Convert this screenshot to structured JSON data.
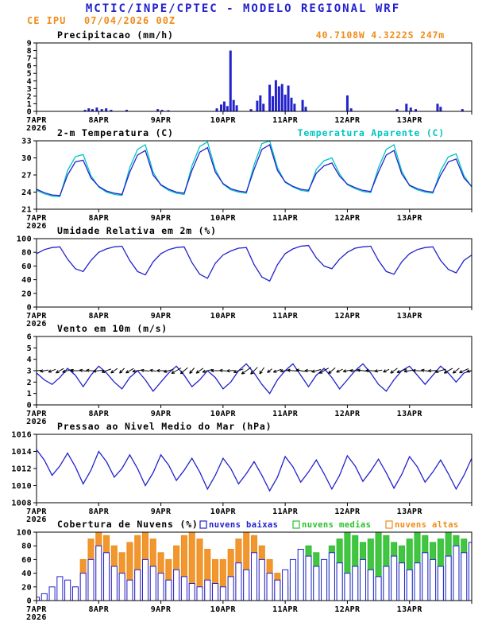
{
  "header": {
    "title": "MCTIC/INPE/CPTEC - MODELO REGIONAL WRF",
    "station": "CE IPU",
    "datetime": "07/04/2026 00Z"
  },
  "colors": {
    "blue": "#2222cc",
    "cyan": "#00c3c3",
    "orange": "#ef8c1a",
    "green": "#2ebf2e",
    "black": "#000000"
  },
  "x_axis": {
    "tick_labels": [
      "7APR",
      "8APR",
      "9APR",
      "10APR",
      "11APR",
      "12APR",
      "13APR"
    ],
    "year_label": "2026",
    "domain_days": 7,
    "points_step_days": 0.125
  },
  "chart_data": [
    {
      "id": "precipitacao",
      "type": "bar",
      "title": "Precipitacao (mm/h)",
      "right_label": {
        "text": "40.7108W 4.3222S 247m",
        "color": "orange"
      },
      "ylim": [
        0,
        9
      ],
      "yticks": [
        0,
        1,
        2,
        3,
        4,
        5,
        6,
        7,
        8,
        9
      ],
      "bar_color": "blue",
      "bars": [
        [
          0.78,
          0.2
        ],
        [
          0.84,
          0.4
        ],
        [
          0.9,
          0.3
        ],
        [
          0.97,
          0.5
        ],
        [
          1.05,
          0.3
        ],
        [
          1.12,
          0.4
        ],
        [
          1.2,
          0.2
        ],
        [
          1.45,
          0.2
        ],
        [
          1.95,
          0.3
        ],
        [
          2.02,
          0.2
        ],
        [
          2.12,
          0.15
        ],
        [
          2.9,
          0.4
        ],
        [
          2.97,
          0.9
        ],
        [
          3.02,
          1.3
        ],
        [
          3.07,
          0.7
        ],
        [
          3.12,
          8.0
        ],
        [
          3.17,
          1.5
        ],
        [
          3.22,
          0.8
        ],
        [
          3.45,
          0.3
        ],
        [
          3.55,
          1.4
        ],
        [
          3.6,
          2.1
        ],
        [
          3.65,
          1.0
        ],
        [
          3.75,
          3.5
        ],
        [
          3.8,
          2.0
        ],
        [
          3.85,
          4.1
        ],
        [
          3.9,
          3.3
        ],
        [
          3.95,
          3.6
        ],
        [
          4.0,
          2.2
        ],
        [
          4.05,
          3.4
        ],
        [
          4.1,
          1.8
        ],
        [
          4.15,
          1.0
        ],
        [
          4.28,
          1.5
        ],
        [
          4.33,
          0.6
        ],
        [
          5.0,
          2.1
        ],
        [
          5.06,
          0.4
        ],
        [
          5.8,
          0.3
        ],
        [
          5.95,
          1.0
        ],
        [
          6.02,
          0.5
        ],
        [
          6.1,
          0.3
        ],
        [
          6.45,
          1.0
        ],
        [
          6.5,
          0.6
        ],
        [
          6.85,
          0.3
        ]
      ]
    },
    {
      "id": "temperatura",
      "type": "line",
      "title": "2-m Temperatura (C)",
      "right_label": {
        "text": "Temperatura Aparente (C)",
        "color": "cyan"
      },
      "ylim": [
        21,
        33
      ],
      "yticks": [
        21,
        24,
        27,
        30,
        33
      ],
      "series": [
        {
          "name": "temperatura-aparente",
          "color": "cyan",
          "values": [
            24.3,
            23.7,
            23.3,
            23.2,
            27.8,
            30.2,
            30.6,
            26.9,
            24.9,
            24.0,
            23.6,
            23.4,
            28.3,
            31.5,
            32.3,
            27.5,
            25.2,
            24.3,
            23.8,
            23.6,
            28.6,
            32.0,
            32.8,
            28.0,
            25.4,
            24.4,
            24.0,
            23.8,
            28.8,
            32.5,
            33.0,
            28.3,
            25.7,
            24.9,
            24.3,
            24.1,
            28.0,
            29.5,
            30.0,
            27.2,
            25.3,
            24.6,
            24.1,
            23.9,
            28.3,
            31.5,
            32.3,
            27.7,
            25.1,
            24.4,
            24.0,
            23.8,
            27.8,
            30.2,
            30.7,
            26.9,
            24.9
          ]
        },
        {
          "name": "temperatura-2m",
          "color": "blue",
          "values": [
            24.5,
            23.9,
            23.5,
            23.4,
            27.0,
            29.3,
            29.6,
            26.5,
            25.0,
            24.2,
            23.8,
            23.6,
            27.5,
            30.5,
            31.3,
            27.0,
            25.3,
            24.5,
            24.0,
            23.8,
            27.8,
            31.0,
            31.8,
            27.5,
            25.5,
            24.6,
            24.2,
            24.0,
            28.0,
            31.5,
            32.3,
            27.8,
            25.8,
            25.0,
            24.5,
            24.3,
            27.3,
            28.6,
            29.1,
            26.8,
            25.4,
            24.8,
            24.3,
            24.1,
            27.5,
            30.5,
            31.3,
            27.2,
            25.2,
            24.6,
            24.2,
            24.0,
            27.0,
            29.3,
            29.8,
            26.5,
            25.0
          ]
        }
      ]
    },
    {
      "id": "umidade",
      "type": "line",
      "title": "Umidade Relativa em 2m (%)",
      "ylim": [
        0,
        100
      ],
      "yticks": [
        0,
        20,
        40,
        60,
        80,
        100
      ],
      "series": [
        {
          "name": "umidade-relativa",
          "color": "blue",
          "values": [
            78,
            84,
            87,
            88,
            70,
            56,
            52,
            68,
            80,
            85,
            88,
            89,
            68,
            52,
            47,
            66,
            78,
            84,
            87,
            88,
            65,
            48,
            42,
            64,
            76,
            82,
            86,
            87,
            62,
            44,
            38,
            62,
            78,
            85,
            89,
            90,
            72,
            60,
            56,
            70,
            80,
            86,
            88,
            89,
            68,
            52,
            48,
            66,
            78,
            84,
            87,
            88,
            68,
            55,
            50,
            68,
            76
          ]
        }
      ]
    },
    {
      "id": "vento",
      "type": "wind",
      "title": "Vento em 10m (m/s)",
      "ylim": [
        0,
        6
      ],
      "yticks": [
        0,
        1,
        2,
        3,
        4,
        5,
        6
      ],
      "series": [
        {
          "name": "vento-10m",
          "color": "blue",
          "values": [
            2.8,
            2.2,
            1.8,
            2.4,
            3.2,
            2.6,
            1.6,
            2.6,
            3.4,
            2.8,
            2.0,
            1.4,
            2.4,
            3.0,
            2.2,
            1.2,
            2.0,
            2.8,
            3.4,
            2.6,
            1.6,
            2.2,
            3.0,
            2.4,
            1.4,
            2.0,
            3.0,
            3.6,
            2.8,
            1.8,
            1.0,
            2.2,
            3.0,
            3.6,
            2.6,
            1.6,
            2.6,
            3.2,
            2.4,
            1.4,
            2.2,
            3.0,
            3.6,
            2.8,
            1.8,
            1.2,
            2.2,
            3.0,
            3.4,
            2.6,
            1.8,
            2.6,
            3.4,
            2.8,
            2.0,
            2.8,
            3.0
          ]
        }
      ],
      "arrows": {
        "anchor": 3.0,
        "color": "black",
        "directions": [
          185,
          190,
          200,
          210,
          195,
          180,
          170,
          175,
          185,
          200,
          215,
          225,
          210,
          190,
          175,
          170,
          180,
          195,
          210,
          220,
          230,
          215,
          195,
          180,
          175,
          185,
          200,
          215,
          225,
          235,
          220,
          200,
          185,
          175,
          170,
          180,
          195,
          210,
          220,
          205,
          190,
          180,
          172,
          178,
          190,
          205,
          215,
          200,
          188,
          178,
          170,
          182,
          196,
          210,
          218,
          205,
          190
        ]
      }
    },
    {
      "id": "pressao",
      "type": "line",
      "title": "Pressao ao Nivel Medio do Mar (hPa)",
      "ylim": [
        1008,
        1016
      ],
      "yticks": [
        1008,
        1010,
        1012,
        1014,
        1016
      ],
      "series": [
        {
          "name": "pressao-nivel-mar",
          "color": "blue",
          "values": [
            1014.2,
            1013.0,
            1011.2,
            1012.3,
            1013.8,
            1012.2,
            1010.2,
            1011.8,
            1014.0,
            1012.8,
            1011.0,
            1012.0,
            1013.6,
            1012.0,
            1010.0,
            1011.5,
            1013.6,
            1012.4,
            1010.6,
            1011.8,
            1013.2,
            1011.6,
            1009.6,
            1011.2,
            1013.2,
            1012.0,
            1010.2,
            1011.4,
            1012.8,
            1011.2,
            1009.4,
            1011.0,
            1013.4,
            1012.2,
            1010.4,
            1011.6,
            1013.0,
            1011.4,
            1009.6,
            1011.2,
            1013.5,
            1012.3,
            1010.5,
            1011.7,
            1013.1,
            1011.5,
            1009.7,
            1011.3,
            1013.4,
            1012.2,
            1010.4,
            1011.6,
            1013.0,
            1011.4,
            1009.6,
            1011.2,
            1013.2
          ]
        }
      ]
    },
    {
      "id": "nuvens",
      "type": "cloudbars",
      "title": "Cobertura de Nuvens (%)",
      "ylim": [
        0,
        100
      ],
      "yticks": [
        0,
        20,
        40,
        60,
        80,
        100
      ],
      "legend": [
        {
          "label": "nuvens baixas",
          "color": "blue"
        },
        {
          "label": "nuvens medias",
          "color": "green"
        },
        {
          "label": "nuvens altas",
          "color": "orange"
        }
      ],
      "series": [
        {
          "name": "nuvens-altas",
          "color": "orange",
          "fill": true,
          "values": [
            0,
            0,
            0,
            0,
            5,
            20,
            60,
            90,
            100,
            95,
            80,
            70,
            85,
            95,
            100,
            90,
            70,
            60,
            80,
            95,
            100,
            90,
            75,
            60,
            60,
            75,
            90,
            100,
            95,
            80,
            60,
            40,
            30,
            20,
            10,
            5,
            0,
            0,
            0,
            0,
            0,
            0,
            0,
            0,
            0,
            0,
            0,
            0,
            0,
            0,
            0,
            0,
            0,
            0,
            0,
            0,
            0
          ]
        },
        {
          "name": "nuvens-medias",
          "color": "green",
          "fill": true,
          "values": [
            0,
            0,
            0,
            0,
            0,
            0,
            0,
            0,
            0,
            0,
            0,
            0,
            0,
            0,
            0,
            5,
            0,
            0,
            0,
            5,
            0,
            0,
            0,
            0,
            0,
            0,
            5,
            10,
            15,
            10,
            5,
            10,
            20,
            40,
            60,
            80,
            70,
            60,
            80,
            90,
            100,
            95,
            85,
            90,
            100,
            95,
            85,
            80,
            90,
            100,
            95,
            85,
            90,
            100,
            95,
            90,
            85
          ]
        },
        {
          "name": "nuvens-baixas",
          "color": "blue",
          "fill": false,
          "values": [
            5,
            10,
            20,
            35,
            30,
            20,
            40,
            60,
            80,
            70,
            50,
            40,
            30,
            45,
            60,
            50,
            40,
            30,
            45,
            35,
            25,
            20,
            30,
            25,
            20,
            35,
            55,
            45,
            70,
            60,
            40,
            30,
            45,
            60,
            75,
            65,
            50,
            60,
            70,
            55,
            40,
            50,
            60,
            45,
            35,
            50,
            65,
            55,
            45,
            55,
            70,
            60,
            50,
            65,
            80,
            70,
            85
          ]
        }
      ]
    }
  ]
}
